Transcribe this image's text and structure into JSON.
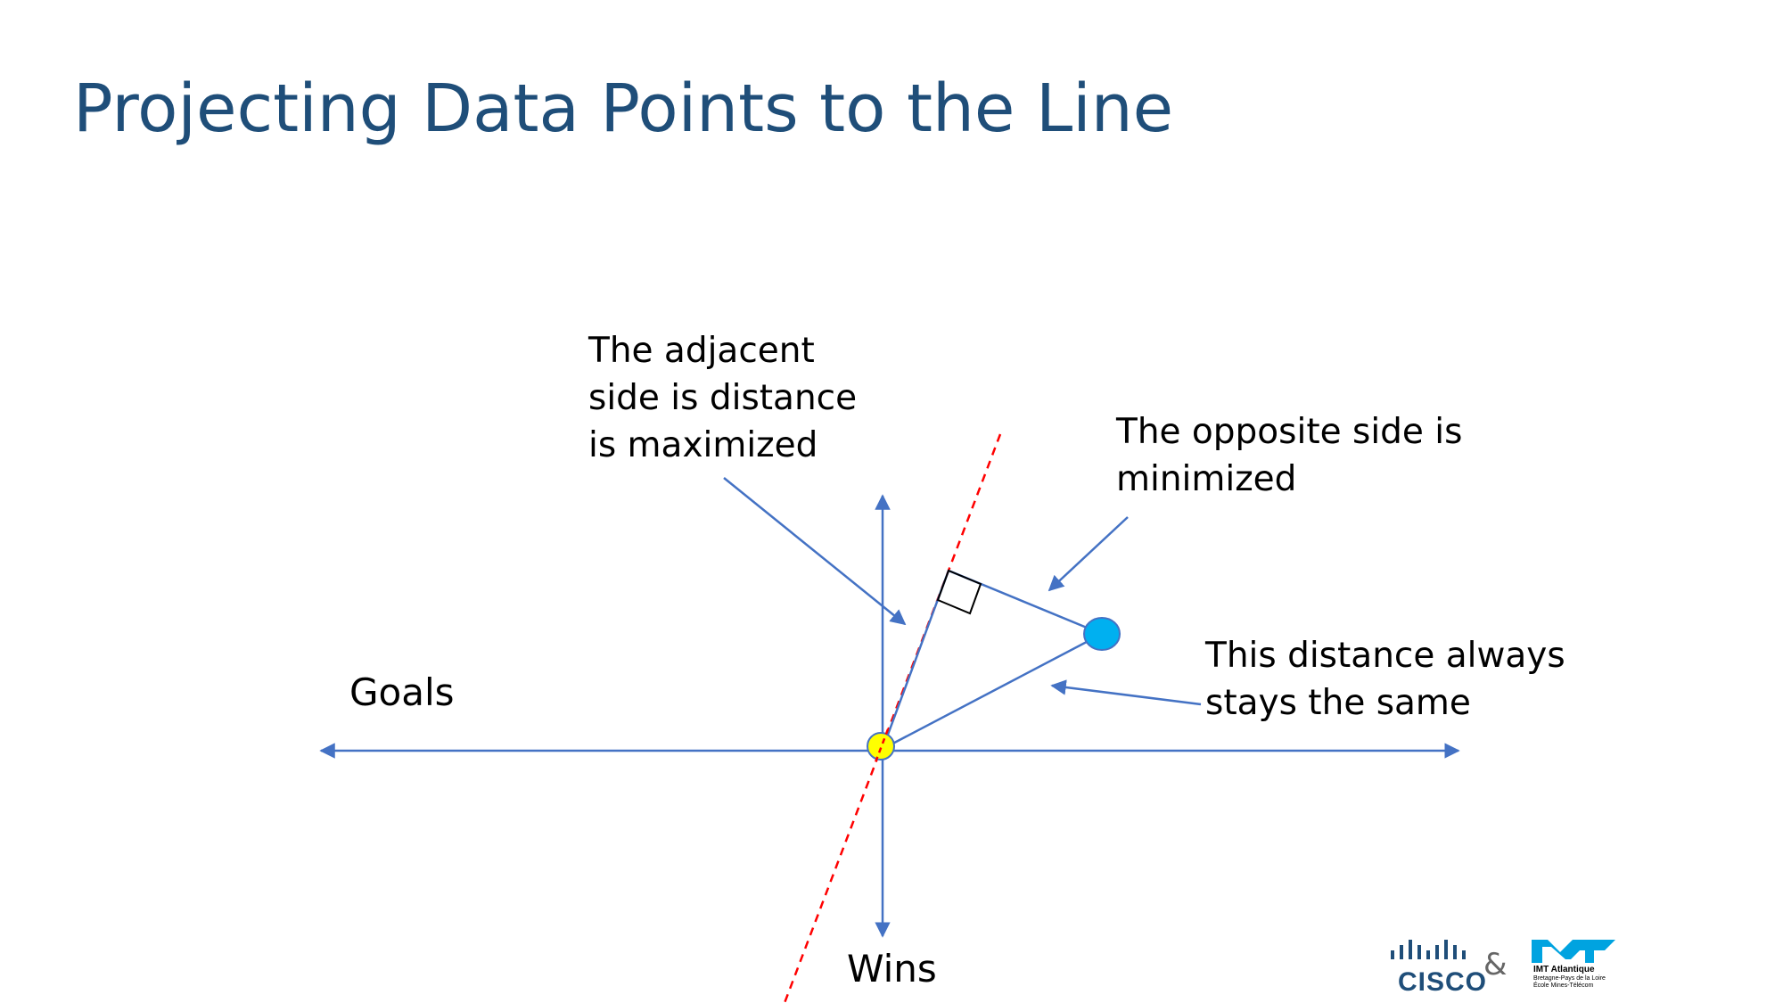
{
  "slide": {
    "title": "Projecting Data Points to the Line"
  },
  "diagram": {
    "axis_labels": {
      "horizontal": "Goals",
      "vertical": "Wins"
    },
    "annotations": {
      "adjacent": [
        "The adjacent",
        "side is distance",
        "is maximized"
      ],
      "opposite": [
        "The opposite side is",
        "minimized"
      ],
      "distance": [
        "This distance always",
        "stays the same"
      ]
    },
    "colors": {
      "axis": "#4472c4",
      "projection_line": "#ff0000",
      "origin_point": "#ffff00",
      "data_point": "#00b0f0",
      "right_angle": "#000000"
    }
  },
  "footer": {
    "cisco": {
      "icon": "cisco-bars-icon",
      "text": "CISCO"
    },
    "ampersand": "&",
    "imt": {
      "icon": "imt-logo-icon",
      "name": "IMT Atlantique",
      "subtitle": [
        "Bretagne-Pays de la Loire",
        "École Mines-Télécom"
      ]
    }
  }
}
